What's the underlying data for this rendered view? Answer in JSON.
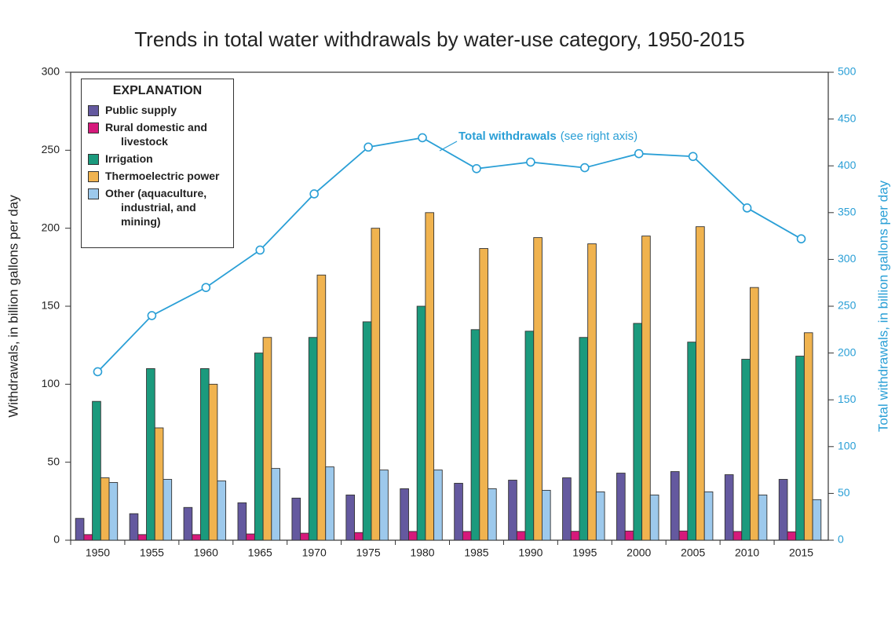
{
  "chart_data": {
    "type": "bar",
    "title": "Trends in total water withdrawals by water-use category, 1950-2015",
    "ylabel": "Withdrawals, in billion gallons per day",
    "y2label": "Total withdrawals, in billion gallons per day",
    "legend_title": "EXPLANATION",
    "legend_position": "upper left",
    "annotation": "(see right axis)",
    "categories": [
      "1950",
      "1955",
      "1960",
      "1965",
      "1970",
      "1975",
      "1980",
      "1985",
      "1990",
      "1995",
      "2000",
      "2005",
      "2010",
      "2015"
    ],
    "ylim": [
      0,
      300
    ],
    "yticks": [
      0,
      50,
      100,
      150,
      200,
      250,
      300
    ],
    "y2lim": [
      0,
      500
    ],
    "y2ticks": [
      0,
      50,
      100,
      150,
      200,
      250,
      300,
      350,
      400,
      450,
      500
    ],
    "series": [
      {
        "name": "Public supply",
        "color": "#64599f",
        "values": [
          14,
          17,
          21,
          24,
          27,
          29,
          33,
          36.5,
          38.5,
          40,
          43,
          44,
          42,
          39
        ]
      },
      {
        "name": "Rural domestic and livestock",
        "color": "#d6197b",
        "values": [
          3.6,
          3.6,
          3.6,
          4,
          4.5,
          4.9,
          5.6,
          5.6,
          5.6,
          5.7,
          5.9,
          5.9,
          5.6,
          5.4
        ]
      },
      {
        "name": "Irrigation",
        "color": "#1b9a7d",
        "values": [
          89,
          110,
          110,
          120,
          130,
          140,
          150,
          135,
          134,
          130,
          139,
          127,
          116,
          118
        ]
      },
      {
        "name": "Thermoelectric power",
        "color": "#f0b34f",
        "values": [
          40,
          72,
          100,
          130,
          170,
          200,
          210,
          187,
          194,
          190,
          195,
          201,
          162,
          133
        ]
      },
      {
        "name": "Other (aquaculture, industrial, and mining)",
        "color": "#9dc9ec",
        "values": [
          37,
          39,
          38,
          46,
          47,
          45,
          45,
          33,
          32,
          31,
          29,
          31,
          29,
          26
        ]
      },
      {
        "name": "Total withdrawals",
        "type": "line",
        "axis": "y2",
        "color": "#2a9fd6",
        "values": [
          180,
          240,
          270,
          310,
          370,
          420,
          430,
          397,
          404,
          398,
          413,
          410,
          355,
          322
        ]
      }
    ]
  }
}
